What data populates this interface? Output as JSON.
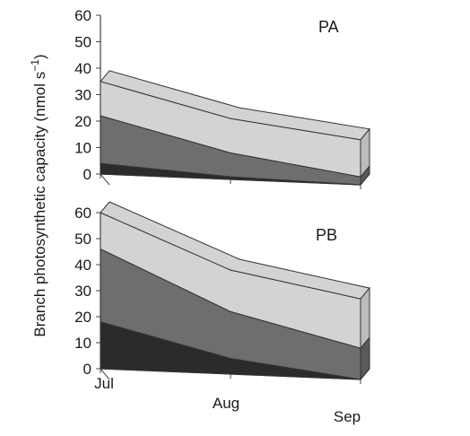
{
  "chart_data": [
    {
      "type": "area",
      "panel_label": "PA",
      "x": [
        "Jul",
        "Aug",
        "Sep"
      ],
      "ylim": [
        0,
        60
      ],
      "yticks": [
        0,
        10,
        20,
        30,
        40,
        50,
        60
      ],
      "series": [
        {
          "values": [
            4,
            1,
            0
          ]
        },
        {
          "values": [
            22,
            10,
            3
          ]
        },
        {
          "values": [
            35,
            23,
            17
          ]
        }
      ]
    },
    {
      "type": "area",
      "panel_label": "PB",
      "x": [
        "Jul",
        "Aug",
        "Sep"
      ],
      "ylim": [
        0,
        60
      ],
      "yticks": [
        0,
        10,
        20,
        30,
        40,
        50,
        60
      ],
      "series": [
        {
          "values": [
            18,
            6,
            0
          ]
        },
        {
          "values": [
            46,
            24,
            12
          ]
        },
        {
          "values": [
            60,
            40,
            31
          ]
        }
      ]
    }
  ],
  "ylabel": "Branch photosynthetic capacity (nmol s",
  "ylabel_sup": "−1",
  "ylabel_tail": ")",
  "colors": {
    "bottom_layer": "#2b2b2b",
    "middle_layer": "#6e6e6e",
    "top_layer": "#d3d3d3",
    "bottom_side": "#222222",
    "middle_side": "#5a5a5a",
    "top_side": "#bcbcbc",
    "outline": "#333333"
  }
}
